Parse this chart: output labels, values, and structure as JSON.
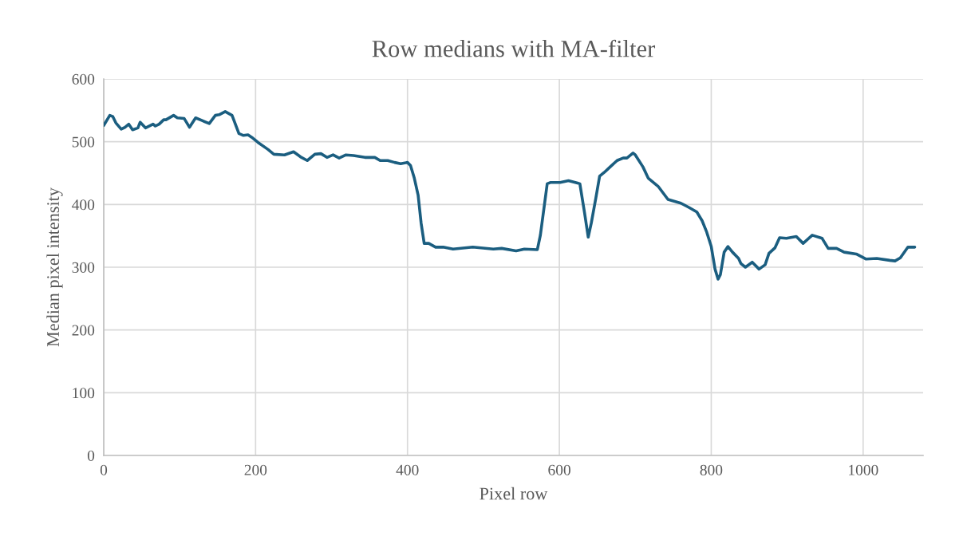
{
  "chart_data": {
    "type": "line",
    "title": "Row medians with MA-filter",
    "xlabel": "Pixel row",
    "ylabel": "Median pixel intensity",
    "xlim": [
      0,
      1079
    ],
    "ylim": [
      0,
      600
    ],
    "xticks": [
      0,
      200,
      400,
      600,
      800,
      1000
    ],
    "yticks": [
      0,
      100,
      200,
      300,
      400,
      500,
      600
    ],
    "grid": true,
    "marker": "none",
    "line_style": "solid",
    "series": [
      {
        "color": "#1b5e80",
        "x": [
          0,
          8,
          12,
          16,
          23,
          28,
          33,
          38,
          45,
          48,
          55,
          65,
          68,
          73,
          79,
          82,
          92,
          97,
          106,
          113,
          121,
          129,
          139,
          147,
          152,
          160,
          169,
          178,
          184,
          190,
          195,
          203,
          216,
          224,
          238,
          250,
          259,
          268,
          278,
          286,
          294,
          302,
          310,
          319,
          329,
          344,
          357,
          364,
          374,
          383,
          391,
          400,
          404,
          409,
          414,
          418,
          422,
          428,
          437,
          447,
          460,
          486,
          513,
          524,
          543,
          554,
          571,
          575,
          584,
          588,
          601,
          612,
          624,
          627,
          633,
          638,
          642,
          648,
          653,
          659,
          667,
          676,
          684,
          689,
          697,
          700,
          710,
          717,
          730,
          743,
          760,
          771,
          781,
          788,
          794,
          800,
          805,
          809,
          812,
          817,
          822,
          828,
          836,
          839,
          845,
          854,
          863,
          871,
          876,
          884,
          890,
          899,
          912,
          921,
          933,
          946,
          954,
          965,
          975,
          991,
          1004,
          1018,
          1035,
          1042,
          1049,
          1059,
          1068
        ],
        "values": [
          526,
          542,
          540,
          530,
          520,
          523,
          528,
          519,
          522,
          531,
          522,
          528,
          525,
          528,
          535,
          535,
          542,
          538,
          537,
          523,
          538,
          534,
          529,
          542,
          543,
          548,
          542,
          513,
          510,
          511,
          507,
          499,
          488,
          480,
          479,
          484,
          476,
          470,
          480,
          481,
          475,
          479,
          474,
          479,
          478,
          475,
          475,
          470,
          470,
          467,
          465,
          467,
          462,
          442,
          415,
          370,
          338,
          338,
          332,
          332,
          329,
          332,
          329,
          330,
          326,
          329,
          328,
          351,
          433,
          435,
          435,
          438,
          434,
          433,
          388,
          348,
          370,
          410,
          445,
          451,
          460,
          470,
          474,
          474,
          482,
          479,
          460,
          442,
          429,
          408,
          402,
          395,
          388,
          374,
          356,
          333,
          297,
          281,
          288,
          324,
          333,
          324,
          314,
          306,
          300,
          308,
          297,
          304,
          322,
          331,
          347,
          346,
          349,
          338,
          351,
          346,
          330,
          330,
          324,
          321,
          313,
          314,
          311,
          310,
          315,
          332,
          332
        ]
      }
    ]
  }
}
